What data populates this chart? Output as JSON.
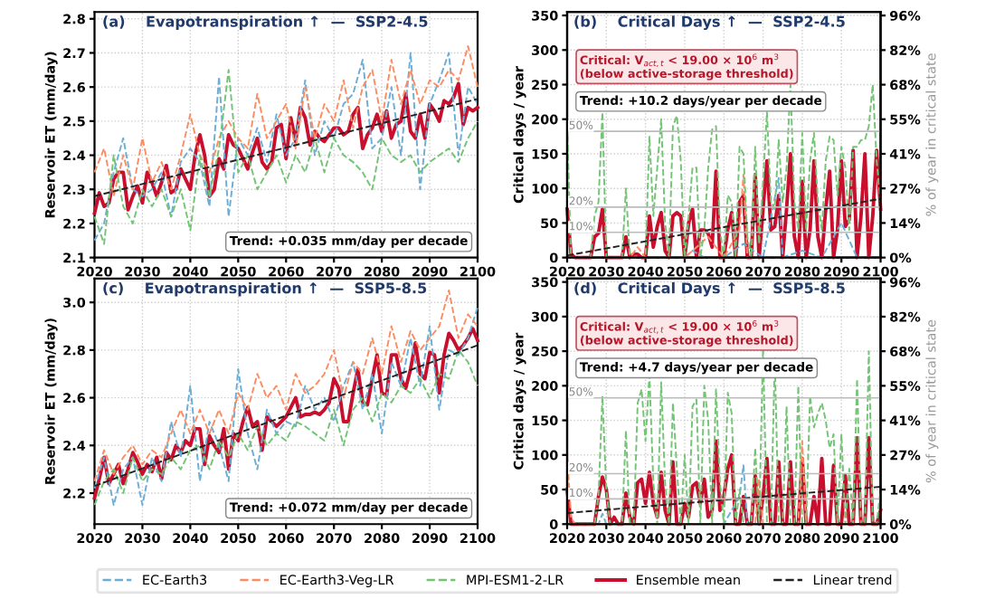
{
  "chart_data": [
    {
      "type": "line",
      "title": "(a)    Evapotranspiration ↑  —  SSP2-4.5",
      "ylabel": "Reservoir ET (mm/day)",
      "xlim": [
        2020,
        2100
      ],
      "xticks": [
        2020,
        2030,
        2040,
        2050,
        2060,
        2070,
        2080,
        2090,
        2100
      ],
      "ylim": [
        2.1,
        2.82
      ],
      "yticks": [
        2.1,
        2.2,
        2.3,
        2.4,
        2.5,
        2.6,
        2.7,
        2.8
      ],
      "grid": true,
      "legend": "bottom",
      "marker": "none",
      "annotations": [
        "Trend: +0.035 mm/day per decade"
      ],
      "series": [
        {
          "name": "EC-Earth3",
          "color": "#6baed6",
          "line_style": "dashed",
          "x": [
            2020,
            2022,
            2024,
            2026,
            2028,
            2030,
            2032,
            2034,
            2036,
            2038,
            2040,
            2042,
            2044,
            2046,
            2048,
            2050,
            2052,
            2054,
            2056,
            2058,
            2060,
            2062,
            2064,
            2066,
            2068,
            2070,
            2072,
            2074,
            2076,
            2078,
            2080,
            2082,
            2084,
            2086,
            2088,
            2090,
            2092,
            2094,
            2096,
            2098,
            2100
          ],
          "values": [
            2.15,
            2.2,
            2.35,
            2.45,
            2.3,
            2.28,
            2.3,
            2.35,
            2.22,
            2.38,
            2.42,
            2.38,
            2.25,
            2.63,
            2.22,
            2.45,
            2.4,
            2.48,
            2.38,
            2.52,
            2.4,
            2.45,
            2.62,
            2.4,
            2.5,
            2.45,
            2.55,
            2.58,
            2.68,
            2.42,
            2.45,
            2.6,
            2.4,
            2.7,
            2.3,
            2.55,
            2.62,
            2.7,
            2.4,
            2.6,
            2.55
          ]
        },
        {
          "name": "EC-Earth3-Veg-LR",
          "color": "#fc8d62",
          "line_style": "dashed",
          "x": [
            2020,
            2022,
            2024,
            2026,
            2028,
            2030,
            2032,
            2034,
            2036,
            2038,
            2040,
            2042,
            2044,
            2046,
            2048,
            2050,
            2052,
            2054,
            2056,
            2058,
            2060,
            2062,
            2064,
            2066,
            2068,
            2070,
            2072,
            2074,
            2076,
            2078,
            2080,
            2082,
            2084,
            2086,
            2088,
            2090,
            2092,
            2094,
            2096,
            2098,
            2100
          ],
          "values": [
            2.35,
            2.42,
            2.28,
            2.4,
            2.3,
            2.45,
            2.32,
            2.38,
            2.3,
            2.4,
            2.52,
            2.4,
            2.35,
            2.45,
            2.5,
            2.45,
            2.42,
            2.58,
            2.45,
            2.5,
            2.55,
            2.42,
            2.6,
            2.45,
            2.55,
            2.5,
            2.62,
            2.48,
            2.6,
            2.65,
            2.5,
            2.68,
            2.55,
            2.65,
            2.55,
            2.62,
            2.6,
            2.65,
            2.62,
            2.72,
            2.6
          ]
        },
        {
          "name": "MPI-ESM1-2-LR",
          "color": "#74c476",
          "line_style": "dashed",
          "x": [
            2020,
            2022,
            2024,
            2026,
            2028,
            2030,
            2032,
            2034,
            2036,
            2038,
            2040,
            2042,
            2044,
            2046,
            2048,
            2050,
            2052,
            2054,
            2056,
            2058,
            2060,
            2062,
            2064,
            2066,
            2068,
            2070,
            2072,
            2074,
            2076,
            2078,
            2080,
            2082,
            2084,
            2086,
            2088,
            2090,
            2092,
            2094,
            2096,
            2098,
            2100
          ],
          "values": [
            2.22,
            2.14,
            2.4,
            2.25,
            2.2,
            2.3,
            2.25,
            2.3,
            2.22,
            2.3,
            2.18,
            2.4,
            2.28,
            2.42,
            2.65,
            2.35,
            2.4,
            2.3,
            2.35,
            2.4,
            2.32,
            2.4,
            2.35,
            2.45,
            2.35,
            2.45,
            2.4,
            2.38,
            2.35,
            2.3,
            2.45,
            2.4,
            2.38,
            2.4,
            2.35,
            2.38,
            2.4,
            2.42,
            2.38,
            2.45,
            2.5
          ]
        },
        {
          "name": "Ensemble mean",
          "color": "#c8102e",
          "line_style": "solid",
          "x": [
            2020,
            2021,
            2022,
            2023,
            2024,
            2025,
            2026,
            2027,
            2028,
            2029,
            2030,
            2031,
            2032,
            2033,
            2034,
            2035,
            2036,
            2037,
            2038,
            2039,
            2040,
            2041,
            2042,
            2043,
            2044,
            2045,
            2046,
            2047,
            2048,
            2049,
            2050,
            2051,
            2052,
            2053,
            2054,
            2055,
            2056,
            2057,
            2058,
            2059,
            2060,
            2061,
            2062,
            2063,
            2064,
            2065,
            2066,
            2067,
            2068,
            2069,
            2070,
            2071,
            2072,
            2073,
            2074,
            2075,
            2076,
            2077,
            2078,
            2079,
            2080,
            2081,
            2082,
            2083,
            2084,
            2085,
            2086,
            2087,
            2088,
            2089,
            2090,
            2091,
            2092,
            2093,
            2094,
            2095,
            2096,
            2097,
            2098,
            2099,
            2100
          ],
          "values": [
            2.23,
            2.29,
            2.25,
            2.26,
            2.33,
            2.35,
            2.35,
            2.24,
            2.28,
            2.31,
            2.26,
            2.35,
            2.32,
            2.28,
            2.32,
            2.37,
            2.29,
            2.3,
            2.36,
            2.33,
            2.3,
            2.4,
            2.46,
            2.4,
            2.28,
            2.3,
            2.39,
            2.36,
            2.46,
            2.43,
            2.42,
            2.39,
            2.36,
            2.41,
            2.45,
            2.38,
            2.36,
            2.38,
            2.48,
            2.49,
            2.39,
            2.51,
            2.44,
            2.54,
            2.51,
            2.43,
            2.47,
            2.45,
            2.44,
            2.46,
            2.48,
            2.48,
            2.46,
            2.47,
            2.52,
            2.54,
            2.42,
            2.46,
            2.48,
            2.52,
            2.47,
            2.53,
            2.45,
            2.49,
            2.5,
            2.58,
            2.47,
            2.45,
            2.52,
            2.45,
            2.55,
            2.53,
            2.5,
            2.56,
            2.55,
            2.57,
            2.61,
            2.49,
            2.54,
            2.53,
            2.54
          ]
        },
        {
          "name": "Linear trend",
          "color": "#222222",
          "line_style": "dashed",
          "x": [
            2020,
            2100
          ],
          "values": [
            2.28,
            2.565
          ]
        }
      ]
    },
    {
      "type": "line",
      "title": "(b)    Critical Days ↑  —  SSP2-4.5",
      "ylabel": "Critical days / year",
      "y2label": "% of year in critical state",
      "xlim": [
        2020,
        2100
      ],
      "xticks": [
        2020,
        2030,
        2040,
        2050,
        2060,
        2070,
        2080,
        2090,
        2100
      ],
      "ylim": [
        0,
        355
      ],
      "yticks": [
        0,
        50,
        100,
        150,
        200,
        250,
        300,
        350
      ],
      "y2lim": [
        0,
        97.3
      ],
      "y2ticks": [
        {
          "value": 0,
          "label": "0%"
        },
        {
          "value": 13.7,
          "label": "14%"
        },
        {
          "value": 27.4,
          "label": "27%"
        },
        {
          "value": 41.1,
          "label": "41%"
        },
        {
          "value": 54.8,
          "label": "55%"
        },
        {
          "value": 68.5,
          "label": "68%"
        },
        {
          "value": 82.2,
          "label": "82%"
        },
        {
          "value": 95.9,
          "label": "96%"
        }
      ],
      "grid": true,
      "legend": false,
      "marker": "none",
      "ref_lines": [
        {
          "axis": "y2",
          "value": 10,
          "label": "10%",
          "color": "#bbbbbb",
          "line_style": "solid"
        },
        {
          "axis": "y2",
          "value": 20,
          "label": "20%",
          "color": "#bbbbbb",
          "line_style": "solid"
        },
        {
          "axis": "y2",
          "value": 50,
          "label": "50%",
          "color": "#bbbbbb",
          "line_style": "solid"
        }
      ],
      "annotations": [
        "Critical: V$_{act,t}$ < 19.00 × 10$^{6}$ m$^{3}$\n(below active-storage threshold)",
        "Trend: +10.2 days/year per decade"
      ],
      "series": [
        {
          "color": "#6baed6",
          "line_style": "dashed",
          "x": [
            2050,
            2052,
            2055,
            2060,
            2065,
            2070,
            2074,
            2075,
            2080,
            2085,
            2090,
            2094,
            2100
          ],
          "values": [
            0,
            10,
            0,
            0,
            20,
            0,
            115,
            0,
            10,
            0,
            50,
            0,
            0
          ]
        },
        {
          "color": "#fc8d62",
          "line_style": "dashed",
          "x": [
            2020,
            2030,
            2036,
            2038,
            2040,
            2050,
            2056,
            2060,
            2064,
            2065,
            2066,
            2070,
            2080,
            2090,
            2100
          ],
          "values": [
            0,
            0,
            0,
            15,
            0,
            0,
            30,
            0,
            40,
            120,
            0,
            0,
            0,
            0,
            0
          ]
        },
        {
          "color": "#74c476",
          "line_style": "dashed",
          "x": [
            2020,
            2021,
            2026,
            2027,
            2028,
            2029,
            2030,
            2034,
            2035,
            2036,
            2040,
            2041,
            2042,
            2043,
            2044,
            2045,
            2046,
            2047,
            2048,
            2049,
            2050,
            2051,
            2052,
            2053,
            2054,
            2055,
            2056,
            2057,
            2058,
            2059,
            2060,
            2061,
            2062,
            2063,
            2064,
            2065,
            2066,
            2067,
            2068,
            2069,
            2070,
            2071,
            2072,
            2073,
            2074,
            2075,
            2076,
            2077,
            2078,
            2079,
            2080,
            2081,
            2082,
            2083,
            2084,
            2085,
            2086,
            2087,
            2088,
            2089,
            2090,
            2091,
            2092,
            2093,
            2094,
            2095,
            2096,
            2097,
            2098,
            2099,
            2100
          ],
          "values": [
            190,
            0,
            0,
            60,
            80,
            210,
            0,
            0,
            100,
            0,
            0,
            175,
            60,
            130,
            200,
            50,
            0,
            190,
            205,
            140,
            0,
            60,
            130,
            130,
            0,
            40,
            130,
            185,
            190,
            40,
            0,
            90,
            80,
            0,
            160,
            150,
            30,
            0,
            160,
            20,
            110,
            210,
            80,
            70,
            170,
            80,
            130,
            250,
            80,
            40,
            180,
            40,
            140,
            180,
            80,
            40,
            140,
            175,
            170,
            90,
            160,
            130,
            40,
            160,
            160,
            170,
            170,
            190,
            250,
            140,
            80
          ]
        },
        {
          "color": "#c8102e",
          "line_style": "solid",
          "x": [
            2020,
            2021,
            2022,
            2026,
            2027,
            2028,
            2029,
            2030,
            2034,
            2035,
            2036,
            2037,
            2038,
            2039,
            2040,
            2041,
            2042,
            2043,
            2044,
            2045,
            2046,
            2047,
            2048,
            2049,
            2050,
            2051,
            2052,
            2053,
            2054,
            2055,
            2056,
            2057,
            2058,
            2059,
            2060,
            2061,
            2062,
            2063,
            2064,
            2065,
            2066,
            2067,
            2068,
            2069,
            2070,
            2071,
            2072,
            2073,
            2074,
            2075,
            2076,
            2077,
            2078,
            2079,
            2080,
            2081,
            2082,
            2083,
            2084,
            2085,
            2086,
            2087,
            2088,
            2089,
            2090,
            2091,
            2092,
            2093,
            2094,
            2095,
            2096,
            2097,
            2098,
            2099,
            2100
          ],
          "values": [
            70,
            5,
            0,
            0,
            30,
            35,
            70,
            0,
            0,
            30,
            0,
            5,
            5,
            0,
            0,
            60,
            15,
            45,
            65,
            10,
            0,
            60,
            65,
            60,
            0,
            50,
            70,
            0,
            40,
            40,
            35,
            15,
            125,
            0,
            0,
            40,
            65,
            0,
            80,
            90,
            0,
            0,
            120,
            0,
            70,
            140,
            40,
            45,
            90,
            0,
            70,
            150,
            30,
            0,
            110,
            0,
            40,
            140,
            30,
            0,
            70,
            125,
            0,
            40,
            140,
            45,
            55,
            155,
            0,
            60,
            150,
            0,
            60,
            155,
            70
          ]
        },
        {
          "color": "#222222",
          "line_style": "dashed",
          "x": [
            2020,
            2100
          ],
          "values": [
            3,
            85
          ]
        }
      ]
    },
    {
      "type": "line",
      "title": "(c)    Evapotranspiration ↑  —  SSP5-8.5",
      "ylabel": "Reservoir ET (mm/day)",
      "xlim": [
        2020,
        2100
      ],
      "xticks": [
        2020,
        2030,
        2040,
        2050,
        2060,
        2070,
        2080,
        2090,
        2100
      ],
      "ylim": [
        2.07,
        3.1
      ],
      "yticks": [
        2.2,
        2.4,
        2.6,
        2.8,
        {
          "value": 3,
          "label": "3.0"
        }
      ],
      "grid": true,
      "legend": false,
      "marker": "none",
      "annotations": [
        "Trend: +0.072 mm/day per decade"
      ],
      "series": [
        {
          "color": "#6baed6",
          "line_style": "dashed",
          "x": [
            2020,
            2022,
            2024,
            2026,
            2028,
            2030,
            2032,
            2034,
            2036,
            2038,
            2040,
            2042,
            2044,
            2046,
            2048,
            2050,
            2052,
            2054,
            2056,
            2058,
            2060,
            2062,
            2064,
            2066,
            2068,
            2070,
            2072,
            2074,
            2076,
            2078,
            2080,
            2082,
            2084,
            2086,
            2088,
            2090,
            2092,
            2094,
            2096,
            2098,
            2100
          ],
          "values": [
            2.22,
            2.35,
            2.15,
            2.3,
            2.35,
            2.15,
            2.35,
            2.25,
            2.5,
            2.35,
            2.65,
            2.25,
            2.5,
            2.4,
            2.25,
            2.72,
            2.45,
            2.3,
            2.55,
            2.45,
            2.5,
            2.48,
            2.65,
            2.55,
            2.6,
            2.5,
            2.65,
            2.75,
            2.55,
            2.7,
            2.45,
            2.75,
            2.65,
            2.85,
            2.65,
            2.9,
            2.55,
            2.8,
            2.78,
            2.85,
            2.98
          ]
        },
        {
          "color": "#fc8d62",
          "line_style": "dashed",
          "x": [
            2020,
            2022,
            2024,
            2026,
            2028,
            2030,
            2032,
            2034,
            2036,
            2038,
            2040,
            2042,
            2044,
            2046,
            2048,
            2050,
            2052,
            2054,
            2056,
            2058,
            2060,
            2062,
            2064,
            2066,
            2068,
            2070,
            2072,
            2074,
            2076,
            2078,
            2080,
            2082,
            2084,
            2086,
            2088,
            2090,
            2092,
            2094,
            2096,
            2098,
            2100
          ],
          "values": [
            2.25,
            2.38,
            2.28,
            2.35,
            2.4,
            2.32,
            2.38,
            2.35,
            2.45,
            2.55,
            2.45,
            2.55,
            2.45,
            2.55,
            2.45,
            2.62,
            2.55,
            2.7,
            2.6,
            2.65,
            2.55,
            2.7,
            2.62,
            2.65,
            2.7,
            2.8,
            2.6,
            2.75,
            2.7,
            2.85,
            2.7,
            2.9,
            2.75,
            2.88,
            2.8,
            2.85,
            2.9,
            3.05,
            2.85,
            2.95,
            2.9
          ]
        },
        {
          "color": "#74c476",
          "line_style": "dashed",
          "x": [
            2020,
            2022,
            2024,
            2026,
            2028,
            2030,
            2032,
            2034,
            2036,
            2038,
            2040,
            2042,
            2044,
            2046,
            2048,
            2050,
            2052,
            2054,
            2056,
            2058,
            2060,
            2062,
            2064,
            2066,
            2068,
            2070,
            2072,
            2074,
            2076,
            2078,
            2080,
            2082,
            2084,
            2086,
            2088,
            2090,
            2092,
            2094,
            2096,
            2098,
            2100
          ],
          "values": [
            2.15,
            2.25,
            2.3,
            2.2,
            2.35,
            2.25,
            2.3,
            2.28,
            2.35,
            2.3,
            2.38,
            2.4,
            2.3,
            2.42,
            2.35,
            2.45,
            2.38,
            2.48,
            2.4,
            2.45,
            2.42,
            2.5,
            2.48,
            2.45,
            2.42,
            2.55,
            2.4,
            2.55,
            2.6,
            2.5,
            2.62,
            2.58,
            2.65,
            2.62,
            2.68,
            2.6,
            2.7,
            2.68,
            2.8,
            2.75,
            2.65
          ]
        },
        {
          "color": "#c8102e",
          "line_style": "solid",
          "x": [
            2020,
            2021,
            2022,
            2023,
            2024,
            2025,
            2026,
            2027,
            2028,
            2029,
            2030,
            2031,
            2032,
            2033,
            2034,
            2035,
            2036,
            2037,
            2038,
            2039,
            2040,
            2041,
            2042,
            2043,
            2044,
            2045,
            2046,
            2047,
            2048,
            2049,
            2050,
            2051,
            2052,
            2053,
            2054,
            2055,
            2056,
            2057,
            2058,
            2059,
            2060,
            2061,
            2062,
            2063,
            2064,
            2065,
            2066,
            2067,
            2068,
            2069,
            2070,
            2071,
            2072,
            2073,
            2074,
            2075,
            2076,
            2077,
            2078,
            2079,
            2080,
            2081,
            2082,
            2083,
            2084,
            2085,
            2086,
            2087,
            2088,
            2089,
            2090,
            2091,
            2092,
            2093,
            2094,
            2095,
            2096,
            2097,
            2098,
            2099,
            2100
          ],
          "values": [
            2.18,
            2.26,
            2.35,
            2.24,
            2.28,
            2.32,
            2.24,
            2.3,
            2.37,
            2.33,
            2.28,
            2.32,
            2.29,
            2.35,
            2.26,
            2.37,
            2.34,
            2.4,
            2.37,
            2.42,
            2.4,
            2.47,
            2.47,
            2.32,
            2.44,
            2.4,
            2.37,
            2.47,
            2.3,
            2.45,
            2.42,
            2.5,
            2.56,
            2.48,
            2.5,
            2.38,
            2.52,
            2.5,
            2.48,
            2.5,
            2.52,
            2.56,
            2.6,
            2.52,
            2.53,
            2.53,
            2.54,
            2.53,
            2.55,
            2.58,
            2.68,
            2.64,
            2.5,
            2.5,
            2.62,
            2.72,
            2.58,
            2.57,
            2.68,
            2.78,
            2.62,
            2.61,
            2.78,
            2.78,
            2.68,
            2.64,
            2.72,
            2.83,
            2.7,
            2.68,
            2.79,
            2.78,
            2.62,
            2.78,
            2.87,
            2.84,
            2.8,
            2.82,
            2.85,
            2.89,
            2.84
          ]
        },
        {
          "color": "#222222",
          "line_style": "dashed",
          "x": [
            2020,
            2100
          ],
          "values": [
            2.23,
            2.82
          ]
        }
      ]
    },
    {
      "type": "line",
      "title": "(d)    Critical Days ↑  —  SSP5-8.5",
      "ylabel": "Critical days / year",
      "y2label": "% of year in critical state",
      "xlim": [
        2020,
        2100
      ],
      "xticks": [
        2020,
        2030,
        2040,
        2050,
        2060,
        2070,
        2080,
        2090,
        2100
      ],
      "ylim": [
        0,
        355
      ],
      "yticks": [
        0,
        50,
        100,
        150,
        200,
        250,
        300,
        350
      ],
      "y2lim": [
        0,
        97.3
      ],
      "y2ticks": [
        {
          "value": 0,
          "label": "0%"
        },
        {
          "value": 13.7,
          "label": "14%"
        },
        {
          "value": 27.4,
          "label": "27%"
        },
        {
          "value": 41.1,
          "label": "41%"
        },
        {
          "value": 54.8,
          "label": "55%"
        },
        {
          "value": 68.5,
          "label": "68%"
        },
        {
          "value": 82.2,
          "label": "82%"
        },
        {
          "value": 95.9,
          "label": "96%"
        }
      ],
      "grid": true,
      "legend": false,
      "marker": "none",
      "ref_lines": [
        {
          "axis": "y2",
          "value": 10,
          "label": "10%",
          "color": "#bbbbbb",
          "line_style": "solid"
        },
        {
          "axis": "y2",
          "value": 20,
          "label": "20%",
          "color": "#bbbbbb",
          "line_style": "solid"
        },
        {
          "axis": "y2",
          "value": 50,
          "label": "50%",
          "color": "#bbbbbb",
          "line_style": "solid"
        }
      ],
      "annotations": [
        "Critical: V$_{act,t}$ < 19.00 × 10$^{6}$ m$^{3}$\n(below active-storage threshold)",
        "Trend: +4.7 days/year per decade"
      ],
      "series": [
        {
          "color": "#6baed6",
          "line_style": "dashed",
          "x": [
            2025,
            2028,
            2029,
            2030,
            2040,
            2060,
            2064,
            2065,
            2066,
            2070,
            2075
          ],
          "values": [
            0,
            0,
            15,
            0,
            0,
            0,
            40,
            85,
            0,
            0,
            0
          ]
        },
        {
          "color": "#fc8d62",
          "line_style": "dashed",
          "x": [
            2020,
            2021,
            2022,
            2030,
            2040,
            2050,
            2060,
            2068,
            2069,
            2070,
            2079,
            2080,
            2081,
            2090,
            2100
          ],
          "values": [
            100,
            10,
            0,
            0,
            0,
            0,
            0,
            0,
            65,
            0,
            0,
            120,
            0,
            0,
            0
          ]
        },
        {
          "color": "#74c476",
          "line_style": "dashed",
          "x": [
            2020,
            2027,
            2028,
            2029,
            2030,
            2031,
            2034,
            2035,
            2036,
            2037,
            2038,
            2039,
            2040,
            2041,
            2042,
            2043,
            2044,
            2045,
            2046,
            2047,
            2048,
            2049,
            2050,
            2051,
            2052,
            2053,
            2054,
            2055,
            2056,
            2057,
            2058,
            2059,
            2060,
            2061,
            2062,
            2063,
            2064,
            2065,
            2067,
            2068,
            2069,
            2070,
            2071,
            2072,
            2073,
            2074,
            2075,
            2076,
            2077,
            2078,
            2079,
            2080,
            2081,
            2082,
            2083,
            2084,
            2085,
            2086,
            2087,
            2088,
            2089,
            2090,
            2091,
            2092,
            2093,
            2094,
            2095,
            2096,
            2097,
            2098,
            2099,
            2100
          ],
          "values": [
            0,
            0,
            40,
            185,
            50,
            0,
            0,
            135,
            0,
            0,
            175,
            195,
            120,
            215,
            60,
            0,
            205,
            60,
            0,
            175,
            80,
            0,
            100,
            0,
            170,
            180,
            0,
            200,
            150,
            0,
            195,
            60,
            0,
            190,
            160,
            0,
            50,
            0,
            0,
            110,
            0,
            255,
            0,
            0,
            240,
            0,
            0,
            170,
            0,
            0,
            200,
            0,
            0,
            185,
            140,
            160,
            175,
            150,
            110,
            130,
            0,
            130,
            0,
            80,
            0,
            210,
            0,
            0,
            250,
            0,
            0,
            50
          ]
        },
        {
          "color": "#c8102e",
          "line_style": "solid",
          "x": [
            2020,
            2021,
            2027,
            2028,
            2029,
            2030,
            2031,
            2032,
            2033,
            2034,
            2035,
            2036,
            2037,
            2038,
            2039,
            2040,
            2041,
            2042,
            2043,
            2044,
            2045,
            2046,
            2047,
            2048,
            2049,
            2050,
            2051,
            2052,
            2053,
            2054,
            2055,
            2056,
            2057,
            2058,
            2059,
            2060,
            2061,
            2062,
            2063,
            2064,
            2065,
            2066,
            2067,
            2068,
            2069,
            2070,
            2071,
            2072,
            2073,
            2074,
            2075,
            2076,
            2077,
            2078,
            2079,
            2080,
            2081,
            2082,
            2083,
            2084,
            2085,
            2086,
            2087,
            2088,
            2089,
            2090,
            2091,
            2092,
            2093,
            2094,
            2095,
            2096,
            2097,
            2098,
            2099,
            2100
          ],
          "values": [
            50,
            0,
            0,
            40,
            68,
            50,
            0,
            10,
            0,
            0,
            45,
            10,
            0,
            60,
            65,
            30,
            75,
            30,
            10,
            75,
            20,
            0,
            90,
            0,
            0,
            30,
            10,
            55,
            60,
            30,
            65,
            10,
            20,
            120,
            20,
            40,
            80,
            100,
            0,
            0,
            40,
            0,
            0,
            70,
            0,
            40,
            95,
            0,
            0,
            90,
            0,
            0,
            90,
            0,
            0,
            95,
            0,
            0,
            40,
            0,
            95,
            0,
            0,
            85,
            0,
            0,
            70,
            0,
            0,
            125,
            0,
            0,
            125,
            0,
            0,
            20
          ]
        },
        {
          "color": "#222222",
          "line_style": "dashed",
          "x": [
            2020,
            2100
          ],
          "values": [
            16,
            54
          ]
        }
      ]
    }
  ]
}
